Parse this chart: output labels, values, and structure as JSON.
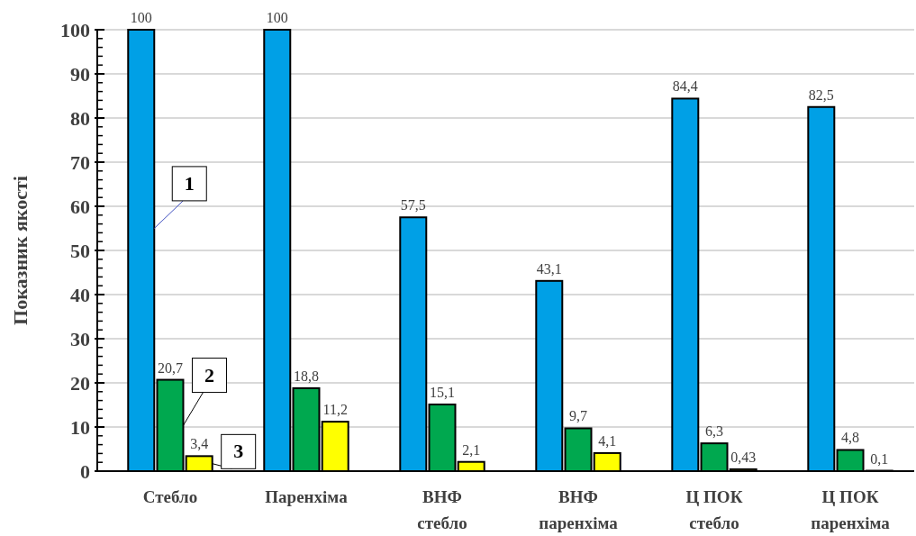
{
  "chart_data": {
    "type": "bar",
    "ylabel": "Показник якості",
    "categories": [
      "Стебло",
      "Паренхіма",
      "ВНФ\nстебло",
      "ВНФ\nпаренхіма",
      "Ц ПОК\nстебло",
      "Ц ПОК\nпаренхіма"
    ],
    "series": [
      {
        "name": "1",
        "color": "#00a0e6",
        "values": [
          100,
          100,
          57.5,
          43.1,
          84.4,
          82.5
        ],
        "value_labels": [
          "100",
          "100",
          "57,5",
          "43,1",
          "84,4",
          "82,5"
        ]
      },
      {
        "name": "2",
        "color": "#00a84f",
        "values": [
          20.7,
          18.8,
          15.1,
          9.7,
          6.3,
          4.8
        ],
        "value_labels": [
          "20,7",
          "18,8",
          "15,1",
          "9,7",
          "6,3",
          "4,8"
        ]
      },
      {
        "name": "3",
        "color": "#ffff00",
        "values": [
          3.4,
          11.2,
          2.1,
          4.1,
          0.43,
          0.1
        ],
        "value_labels": [
          "3,4",
          "11,2",
          "2,1",
          "4,1",
          "0,43",
          "0,1"
        ]
      }
    ],
    "ylim": [
      0,
      100
    ],
    "yticks": [
      0,
      10,
      20,
      30,
      40,
      50,
      60,
      70,
      80,
      90,
      100
    ],
    "grid": "y"
  }
}
